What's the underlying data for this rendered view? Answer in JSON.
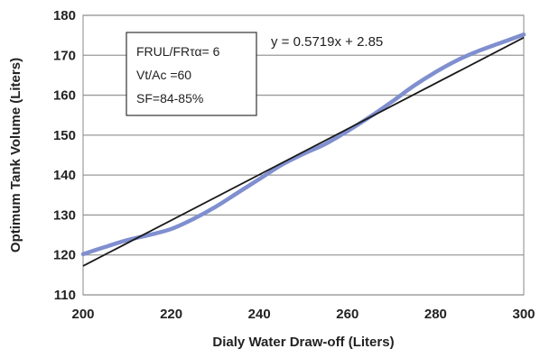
{
  "chart_data": {
    "type": "line",
    "xlabel": "Dialy Water Draw-off (Liters)",
    "ylabel": "Optimum Tank Volume (Liters)",
    "xlim": [
      200,
      300
    ],
    "ylim": [
      110,
      180
    ],
    "x_ticks": [
      "200",
      "220",
      "240",
      "260",
      "280",
      "300"
    ],
    "y_ticks": [
      "110",
      "120",
      "130",
      "140",
      "150",
      "160",
      "170",
      "180"
    ],
    "grid": "horizontal",
    "series": [
      {
        "kind": "data-curve",
        "color": "#7f8fcf",
        "x": [
          200,
          205,
          210,
          215,
          220,
          225,
          230,
          235,
          240,
          245,
          250,
          255,
          260,
          265,
          270,
          275,
          280,
          285,
          290,
          295,
          300
        ],
        "y": [
          120.2,
          122.0,
          123.7,
          125.0,
          126.5,
          129.0,
          132.0,
          135.5,
          139.0,
          142.5,
          145.3,
          147.8,
          151.0,
          154.5,
          158.3,
          162.3,
          165.8,
          168.8,
          171.2,
          173.2,
          175.2
        ]
      },
      {
        "kind": "trendline",
        "color": "#1a1a1a",
        "slope": 0.5719,
        "intercept": 2.85
      }
    ],
    "annotations": {
      "box_lines": [
        "FRUL/FRτα= 6",
        "Vt/Ac =60",
        "SF=84-85%"
      ],
      "equation": "y = 0.5719x + 2.85"
    }
  }
}
